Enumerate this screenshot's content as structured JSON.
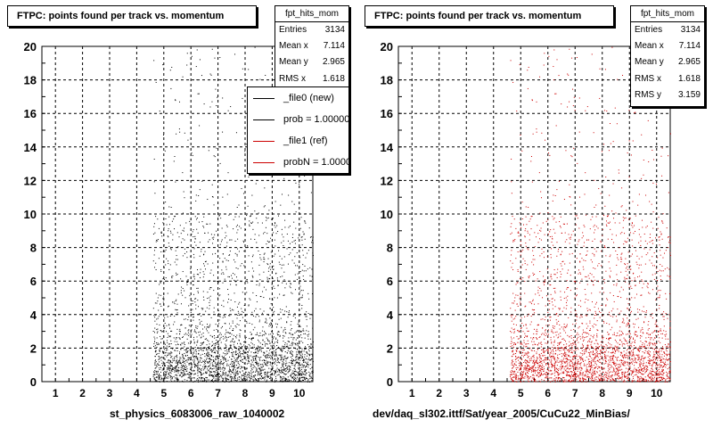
{
  "chart_data": [
    {
      "type": "scatter",
      "title": "FTPC: points found per track vs. momentum",
      "xlabel": "st_physics_6083006_raw_1040002",
      "ylabel": "",
      "xlim": [
        0.5,
        10.5
      ],
      "ylim": [
        0,
        20
      ],
      "xticks": [
        "1",
        "2",
        "3",
        "4",
        "5",
        "6",
        "7",
        "8",
        "9",
        "10"
      ],
      "yticks": [
        "0",
        "2",
        "4",
        "6",
        "8",
        "10",
        "12",
        "14",
        "16",
        "18",
        "20"
      ],
      "grid": true,
      "marker_color": "#000000",
      "distribution": {
        "x_min": 4.6,
        "x_max": 10.5,
        "dense_y_below": 4,
        "approx_points": 3134
      },
      "stats": {
        "name": "fpt_hits_mom",
        "rows": [
          {
            "label": "Entries",
            "value": "3134"
          },
          {
            "label": "Mean x",
            "value": "7.114"
          },
          {
            "label": "Mean y",
            "value": "2.965"
          },
          {
            "label": "RMS x",
            "value": "1.618"
          }
        ]
      },
      "legend": {
        "placement": "top-right",
        "entries": [
          {
            "label": "_file0 (new)",
            "color": "#000000"
          },
          {
            "label": "prob = 1.000000",
            "color": "#000000"
          },
          {
            "label": "_file1 (ref)",
            "color": "#cc0000"
          },
          {
            "label": "probN = 1.000000",
            "color": "#cc0000"
          }
        ]
      }
    },
    {
      "type": "scatter",
      "title": "FTPC: points found per track vs. momentum",
      "xlabel": "dev/daq_sl302.ittf/Sat/year_2005/CuCu22_MinBias/",
      "ylabel": "",
      "xlim": [
        0.5,
        10.5
      ],
      "ylim": [
        0,
        20
      ],
      "xticks": [
        "1",
        "2",
        "3",
        "4",
        "5",
        "6",
        "7",
        "8",
        "9",
        "10"
      ],
      "yticks": [
        "0",
        "2",
        "4",
        "6",
        "8",
        "10",
        "12",
        "14",
        "16",
        "18",
        "20"
      ],
      "grid": true,
      "marker_color": "#cc0000",
      "distribution": {
        "x_min": 4.6,
        "x_max": 10.5,
        "dense_y_below": 4,
        "approx_points": 3134
      },
      "stats": {
        "name": "fpt_hits_mom",
        "rows": [
          {
            "label": "Entries",
            "value": "3134"
          },
          {
            "label": "Mean x",
            "value": "7.114"
          },
          {
            "label": "Mean y",
            "value": "2.965"
          },
          {
            "label": "RMS x",
            "value": "1.618"
          },
          {
            "label": "RMS y",
            "value": "3.159"
          }
        ]
      }
    }
  ]
}
